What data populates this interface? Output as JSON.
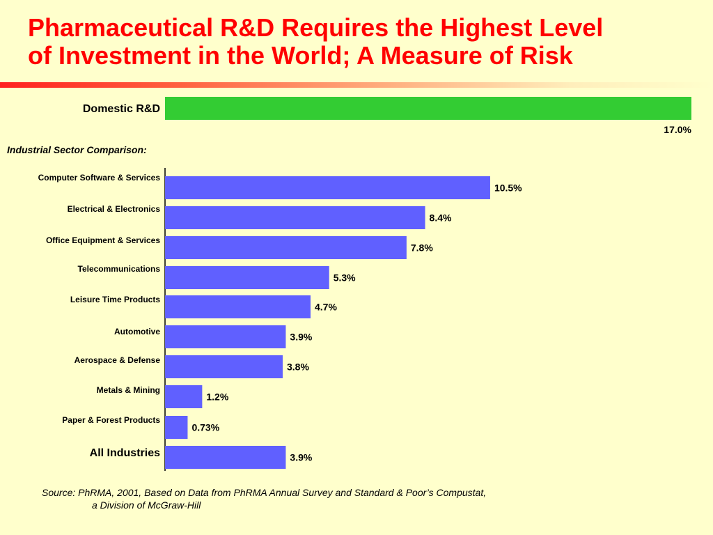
{
  "title": {
    "line1": "Pharmaceutical R&D Requires the Highest Level",
    "line2": "of Investment in the World; A Measure of Risk"
  },
  "section_label": "Industrial Sector Comparison:",
  "source": {
    "line1": "Source: PhRMA, 2001, Based on Data from PhRMA Annual Survey and Standard & Poor’s Compustat,",
    "line2": "a Division of McGraw-Hill"
  },
  "colors": {
    "background": "#ffffcc",
    "title": "#ff0000",
    "domestic_bar": "#33cc33",
    "sector_bar": "#6060ff"
  },
  "chart_data": {
    "type": "bar",
    "orientation": "horizontal",
    "unit": "%",
    "xlim": [
      0,
      17.0
    ],
    "grid": false,
    "categories": [
      "Domestic R&D",
      "Computer Software & Services",
      "Electrical & Electronics",
      "Office Equipment & Services",
      "Telecommunications",
      "Leisure Time Products",
      "Automotive",
      "Aerospace & Defense",
      "Metals & Mining",
      "Paper & Forest Products",
      "All Industries"
    ],
    "values": [
      17.0,
      10.5,
      8.4,
      7.8,
      5.3,
      4.7,
      3.9,
      3.8,
      1.2,
      0.73,
      3.9
    ],
    "data_labels": [
      "17.0%",
      "10.5%",
      "8.4%",
      "7.8%",
      "5.3%",
      "4.7%",
      "3.9%",
      "3.8%",
      "1.2%",
      "0.73%",
      "3.9%"
    ]
  }
}
